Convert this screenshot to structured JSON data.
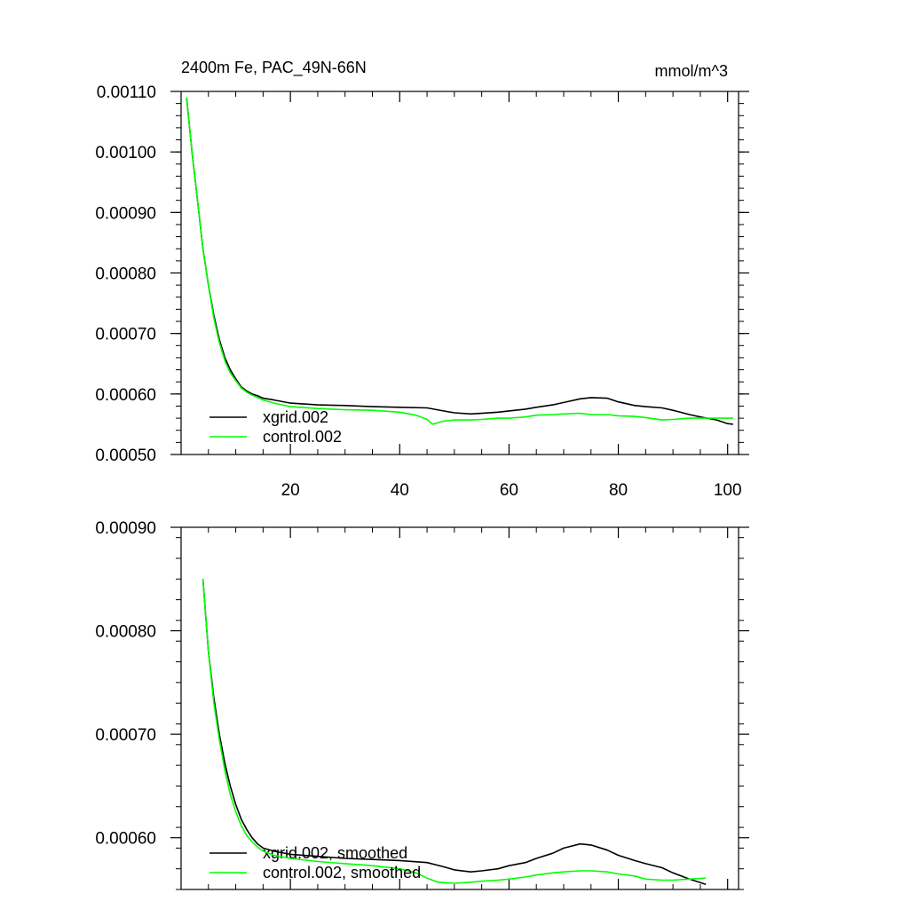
{
  "chart_data": [
    {
      "type": "line",
      "title": "2400m Fe, PAC_49N-66N",
      "units": "mmol/m^3",
      "xlabel": "",
      "ylabel": "",
      "xlim": [
        0,
        102
      ],
      "ylim": [
        0.0005,
        0.0011
      ],
      "xticks": [
        20,
        40,
        60,
        80,
        100
      ],
      "xtick_labels": [
        "20",
        "40",
        "60",
        "80",
        "100"
      ],
      "yticks": [
        0.0005,
        0.0006,
        0.0007,
        0.0008,
        0.0009,
        0.001,
        0.0011
      ],
      "ytick_labels": [
        "0.00050",
        "0.00060",
        "0.00070",
        "0.00080",
        "0.00090",
        "0.00100",
        "0.00110"
      ],
      "grid": false,
      "legend_position": "bottom-left",
      "series": [
        {
          "name": "xgrid.002",
          "color": "#000000",
          "x": [
            1,
            2,
            3,
            4,
            5,
            6,
            7,
            8,
            9,
            10,
            11,
            12,
            13,
            14,
            15,
            17,
            20,
            25,
            30,
            35,
            40,
            45,
            48,
            50,
            53,
            55,
            58,
            60,
            63,
            65,
            68,
            70,
            73,
            75,
            78,
            80,
            83,
            85,
            88,
            90,
            93,
            95,
            98,
            100,
            101
          ],
          "y": [
            0.00109,
            0.001,
            0.00092,
            0.00084,
            0.00078,
            0.00073,
            0.00069,
            0.00066,
            0.00064,
            0.000625,
            0.000612,
            0.000605,
            0.0006,
            0.000597,
            0.000593,
            0.00059,
            0.000585,
            0.000582,
            0.000581,
            0.000579,
            0.000578,
            0.000577,
            0.000572,
            0.000569,
            0.000567,
            0.000568,
            0.00057,
            0.000572,
            0.000575,
            0.000578,
            0.000582,
            0.000586,
            0.000592,
            0.000594,
            0.000593,
            0.000587,
            0.000581,
            0.000579,
            0.000577,
            0.000573,
            0.000566,
            0.000562,
            0.000557,
            0.000551,
            0.00055
          ]
        },
        {
          "name": "control.002",
          "color": "#00ff00",
          "x": [
            1,
            2,
            3,
            4,
            5,
            6,
            7,
            8,
            9,
            10,
            11,
            12,
            13,
            14,
            15,
            17,
            20,
            25,
            30,
            35,
            40,
            43,
            45,
            46,
            48,
            50,
            53,
            55,
            58,
            60,
            63,
            65,
            68,
            70,
            73,
            75,
            78,
            80,
            83,
            85,
            88,
            90,
            93,
            95,
            98,
            100,
            101
          ],
          "y": [
            0.00109,
            0.001,
            0.00092,
            0.00084,
            0.00078,
            0.000725,
            0.000685,
            0.000655,
            0.000635,
            0.000622,
            0.00061,
            0.000603,
            0.000598,
            0.000594,
            0.00059,
            0.000585,
            0.000579,
            0.000576,
            0.000574,
            0.000573,
            0.00057,
            0.000565,
            0.000558,
            0.00055,
            0.000555,
            0.000557,
            0.000557,
            0.000558,
            0.00056,
            0.00056,
            0.000562,
            0.000565,
            0.000566,
            0.000567,
            0.000568,
            0.000566,
            0.000566,
            0.000564,
            0.000563,
            0.000561,
            0.000557,
            0.000558,
            0.00056,
            0.00056,
            0.00056,
            0.00056,
            0.00056
          ]
        }
      ]
    },
    {
      "type": "line",
      "title": "",
      "xlabel": "",
      "ylabel": "",
      "xlim": [
        0,
        102
      ],
      "ylim": [
        0.00055,
        0.0009
      ],
      "xticks": [
        20,
        40,
        60,
        80,
        100
      ],
      "yticks": [
        0.0006,
        0.0007,
        0.0008,
        0.0009
      ],
      "ytick_labels": [
        "0.00060",
        "0.00070",
        "0.00080",
        "0.00090"
      ],
      "grid": false,
      "legend_position": "bottom-left",
      "series": [
        {
          "name": "xgrid.002, smoothed",
          "color": "#000000",
          "x": [
            4,
            5,
            6,
            7,
            8,
            9,
            10,
            11,
            12,
            13,
            14,
            15,
            17,
            20,
            25,
            30,
            35,
            40,
            45,
            48,
            50,
            53,
            55,
            58,
            60,
            63,
            65,
            68,
            70,
            73,
            75,
            78,
            80,
            83,
            85,
            88,
            90,
            93,
            96
          ],
          "y": [
            0.00085,
            0.00078,
            0.000735,
            0.0007,
            0.000672,
            0.00065,
            0.000632,
            0.000618,
            0.000608,
            0.0006,
            0.000594,
            0.00059,
            0.000587,
            0.000584,
            0.000582,
            0.00058,
            0.000579,
            0.000578,
            0.000576,
            0.000572,
            0.000569,
            0.000567,
            0.000568,
            0.00057,
            0.000573,
            0.000576,
            0.00058,
            0.000585,
            0.00059,
            0.000594,
            0.000593,
            0.000588,
            0.000583,
            0.000578,
            0.000575,
            0.000571,
            0.000566,
            0.00056,
            0.000555
          ]
        },
        {
          "name": "control.002, smoothed",
          "color": "#00ff00",
          "x": [
            4,
            5,
            6,
            7,
            8,
            9,
            10,
            11,
            12,
            13,
            14,
            15,
            17,
            20,
            25,
            30,
            35,
            40,
            43,
            45,
            47,
            50,
            53,
            55,
            58,
            60,
            63,
            65,
            68,
            70,
            73,
            75,
            78,
            80,
            83,
            85,
            88,
            90,
            93,
            96
          ],
          "y": [
            0.00085,
            0.00078,
            0.00073,
            0.000695,
            0.000665,
            0.000642,
            0.000625,
            0.000612,
            0.000602,
            0.000596,
            0.000591,
            0.000587,
            0.000583,
            0.00058,
            0.000577,
            0.000575,
            0.000573,
            0.00057,
            0.000566,
            0.000561,
            0.000557,
            0.000556,
            0.000557,
            0.000558,
            0.000559,
            0.00056,
            0.000562,
            0.000564,
            0.000566,
            0.000567,
            0.000568,
            0.000568,
            0.000567,
            0.000565,
            0.000563,
            0.00056,
            0.000559,
            0.000559,
            0.00056,
            0.000561
          ]
        }
      ]
    }
  ]
}
